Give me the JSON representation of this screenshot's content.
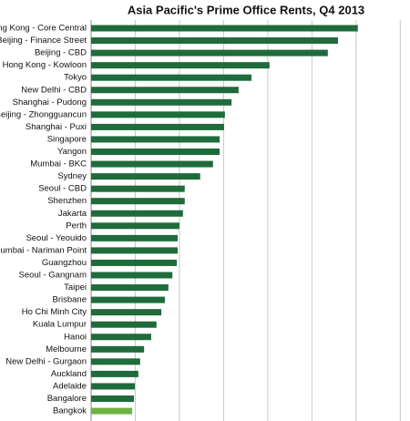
{
  "chart_data": {
    "type": "bar",
    "orientation": "horizontal",
    "title": "Asia Pacific's Prime Office Rents, Q4 2013",
    "categories": [
      "Hong Kong - Core Central",
      "Beijing - Finance Street",
      "Beijing - CBD",
      "Hong Kong - Kowloon",
      "Tokyo",
      "New Delhi - CBD",
      "Shanghai - Pudong",
      "Beijing - Zhongguancun",
      "Shanghai - Puxi",
      "Singapore",
      "Yangon",
      "Mumbai - BKC",
      "Sydney",
      "Seoul - CBD",
      "Shenzhen",
      "Jakarta",
      "Perth",
      "Seoul - Yeouido",
      "Mumbai - Nariman Point",
      "Guangzhou",
      "Seoul - Gangnam",
      "Taipei",
      "Brisbane",
      "Ho Chi Minh City",
      "Kuala Lumpur",
      "Hanoi",
      "Melbourne",
      "New Delhi - Gurgaon",
      "Auckland",
      "Adelaide",
      "Bangalore",
      "Bangkok"
    ],
    "values": [
      6.04,
      5.59,
      5.36,
      4.04,
      3.63,
      3.34,
      3.18,
      3.03,
      3.01,
      2.91,
      2.91,
      2.76,
      2.47,
      2.12,
      2.12,
      2.08,
      2.0,
      1.96,
      1.96,
      1.94,
      1.84,
      1.75,
      1.67,
      1.59,
      1.48,
      1.36,
      1.2,
      1.11,
      1.07,
      0.99,
      0.97,
      0.93
    ],
    "colors": [
      "#1f6b3b",
      "#1f6b3b",
      "#1f6b3b",
      "#1f6b3b",
      "#1f6b3b",
      "#1f6b3b",
      "#1f6b3b",
      "#1f6b3b",
      "#1f6b3b",
      "#1f6b3b",
      "#1f6b3b",
      "#1f6b3b",
      "#1f6b3b",
      "#1f6b3b",
      "#1f6b3b",
      "#1f6b3b",
      "#1f6b3b",
      "#1f6b3b",
      "#1f6b3b",
      "#1f6b3b",
      "#1f6b3b",
      "#1f6b3b",
      "#1f6b3b",
      "#1f6b3b",
      "#1f6b3b",
      "#1f6b3b",
      "#1f6b3b",
      "#1f6b3b",
      "#1f6b3b",
      "#1f6b3b",
      "#1f6b3b",
      "#6db33f"
    ],
    "xlim": [
      0,
      7.2
    ],
    "xticks": [
      0,
      1,
      2,
      3,
      4,
      5,
      6,
      7
    ],
    "grid": true
  }
}
